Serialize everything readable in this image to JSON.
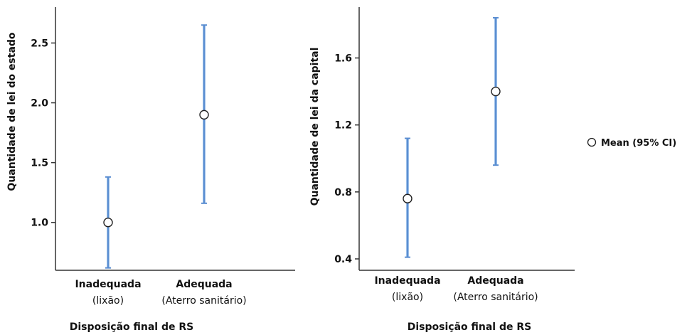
{
  "chart_data": [
    {
      "type": "errorbar",
      "xlabel": "Disposição final de RS",
      "ylabel": "Quantidade de lei do estado",
      "ylim": [
        0.6,
        2.8
      ],
      "yticks": [
        1.0,
        1.5,
        2.0,
        2.5
      ],
      "tick_labels": [
        "1.0",
        "1.5",
        "2.0",
        "2.5"
      ],
      "categories": [
        {
          "label": "Inadequada",
          "sublabel": "(lixão)"
        },
        {
          "label": "Adequada",
          "sublabel": "(Aterro sanitário)"
        }
      ],
      "series": [
        {
          "mean": [
            1.0,
            1.9
          ],
          "lower": [
            0.62,
            1.16
          ],
          "upper": [
            1.38,
            2.65
          ]
        }
      ]
    },
    {
      "type": "errorbar",
      "xlabel": "Disposição final de RS",
      "ylabel": "Quantidade de lei da capital",
      "ylim": [
        0.4,
        1.84
      ],
      "yticks": [
        0.4,
        0.8,
        1.2,
        1.6
      ],
      "tick_labels": [
        "0.4",
        "0.8",
        "1.2",
        "1.6"
      ],
      "categories": [
        {
          "label": "Inadequada",
          "sublabel": "(lixão)"
        },
        {
          "label": "Adequada",
          "sublabel": "(Aterro sanitário)"
        }
      ],
      "series": [
        {
          "mean": [
            0.76,
            1.4
          ],
          "lower": [
            0.41,
            0.96
          ],
          "upper": [
            1.12,
            1.84
          ]
        }
      ]
    }
  ],
  "legend": {
    "label": "Mean (95% CI)",
    "position": "right"
  },
  "colors": {
    "errorbar": "#5b8ed1",
    "errorbar_light": "#9ec1ea",
    "axis": "#333333",
    "marker_fill": "#ffffff",
    "marker_stroke": "#222222"
  }
}
